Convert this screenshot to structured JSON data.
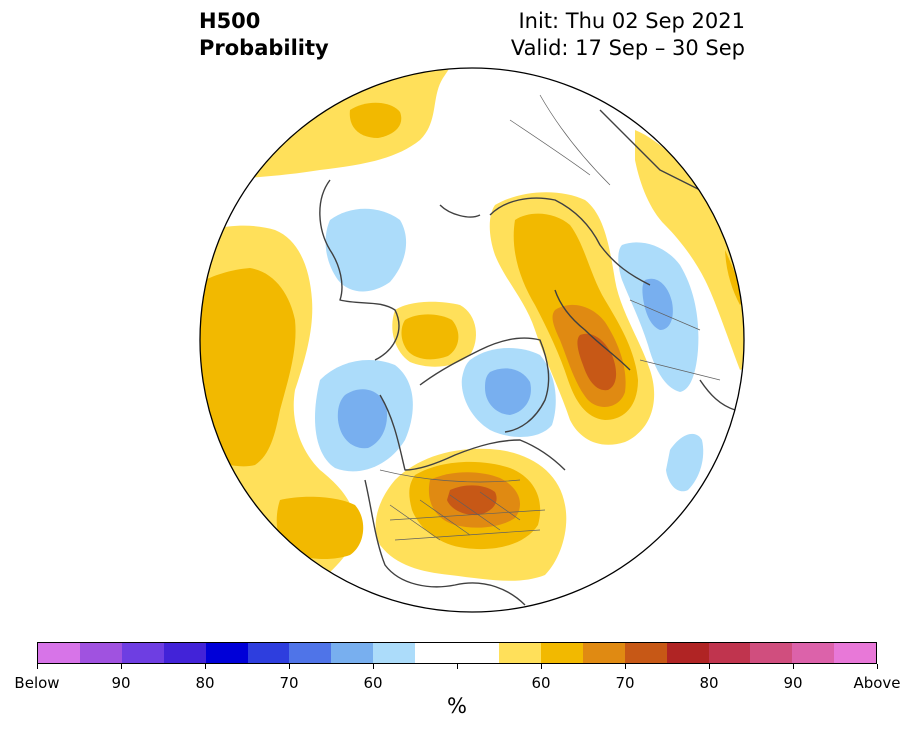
{
  "title": {
    "left_line1": "H500",
    "left_line2": "Probability",
    "init": "Init: Thu 02 Sep 2021",
    "valid": "Valid: 17 Sep – 30 Sep"
  },
  "colorbar": {
    "colors": [
      "#d774e8",
      "#a052e0",
      "#6e3ee2",
      "#4223d8",
      "#0000d8",
      "#2e3ede",
      "#4f74e8",
      "#78afef",
      "#acdcfa",
      "#ffffff",
      "#ffffff",
      "#ffe05a",
      "#f2b900",
      "#e08a12",
      "#c75816",
      "#b02424",
      "#c0344e",
      "#d04e7e",
      "#dc62aa",
      "#e878d8"
    ],
    "labels": [
      "Below",
      "90",
      "80",
      "70",
      "60",
      "60",
      "70",
      "80",
      "90",
      "Above"
    ],
    "unit": "%"
  },
  "map": {
    "projection": "north-polar-stereographic",
    "colors": {
      "below_light": "#acdcfa",
      "below_mid": "#78afef",
      "above_light": "#ffe05a",
      "above_mid": "#f2b900",
      "above_strong": "#e08a12",
      "above_strongest": "#c75816",
      "coast": "#404040",
      "border": "#606060"
    }
  }
}
